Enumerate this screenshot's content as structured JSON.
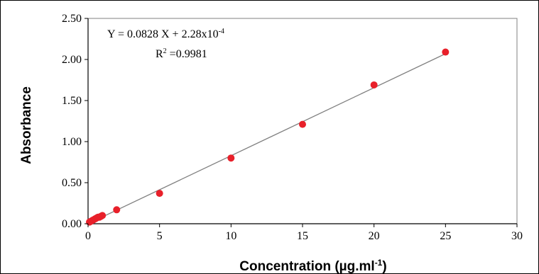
{
  "chart_data": {
    "type": "scatter",
    "title": "",
    "xlabel": "Concentration (µg.ml",
    "xlabel_sup": "-1",
    "xlabel_end": ")",
    "ylabel": "Absorbance",
    "xlim": [
      0,
      30
    ],
    "ylim": [
      0,
      2.5
    ],
    "x_ticks": [
      "0",
      "5",
      "10",
      "15",
      "20",
      "25",
      "30"
    ],
    "y_ticks": [
      "0.00",
      "0.50",
      "1.00",
      "1.50",
      "2.00",
      "2.50"
    ],
    "grid": false,
    "legend": "none",
    "annotations": {
      "equation": "Y = 0.0828 X + 2.28x10",
      "equation_exp": "-4",
      "r2_label": "R",
      "r2_sup": "2",
      "r2_value": " =0.9981"
    },
    "trendline": {
      "slope": 0.0828,
      "intercept": 0.000228
    },
    "colors": {
      "marker": "#e8202a",
      "trendline": "#808080",
      "axis": "#000000"
    },
    "series": [
      {
        "x": [
          0.1,
          0.2,
          0.3,
          0.4,
          0.5,
          0.6,
          0.7,
          0.8,
          0.9,
          1.0,
          2,
          5,
          10,
          15,
          20,
          25
        ],
        "y": [
          0.02,
          0.03,
          0.04,
          0.05,
          0.06,
          0.07,
          0.08,
          0.08,
          0.09,
          0.1,
          0.17,
          0.37,
          0.8,
          1.21,
          1.69,
          2.09
        ]
      }
    ]
  }
}
